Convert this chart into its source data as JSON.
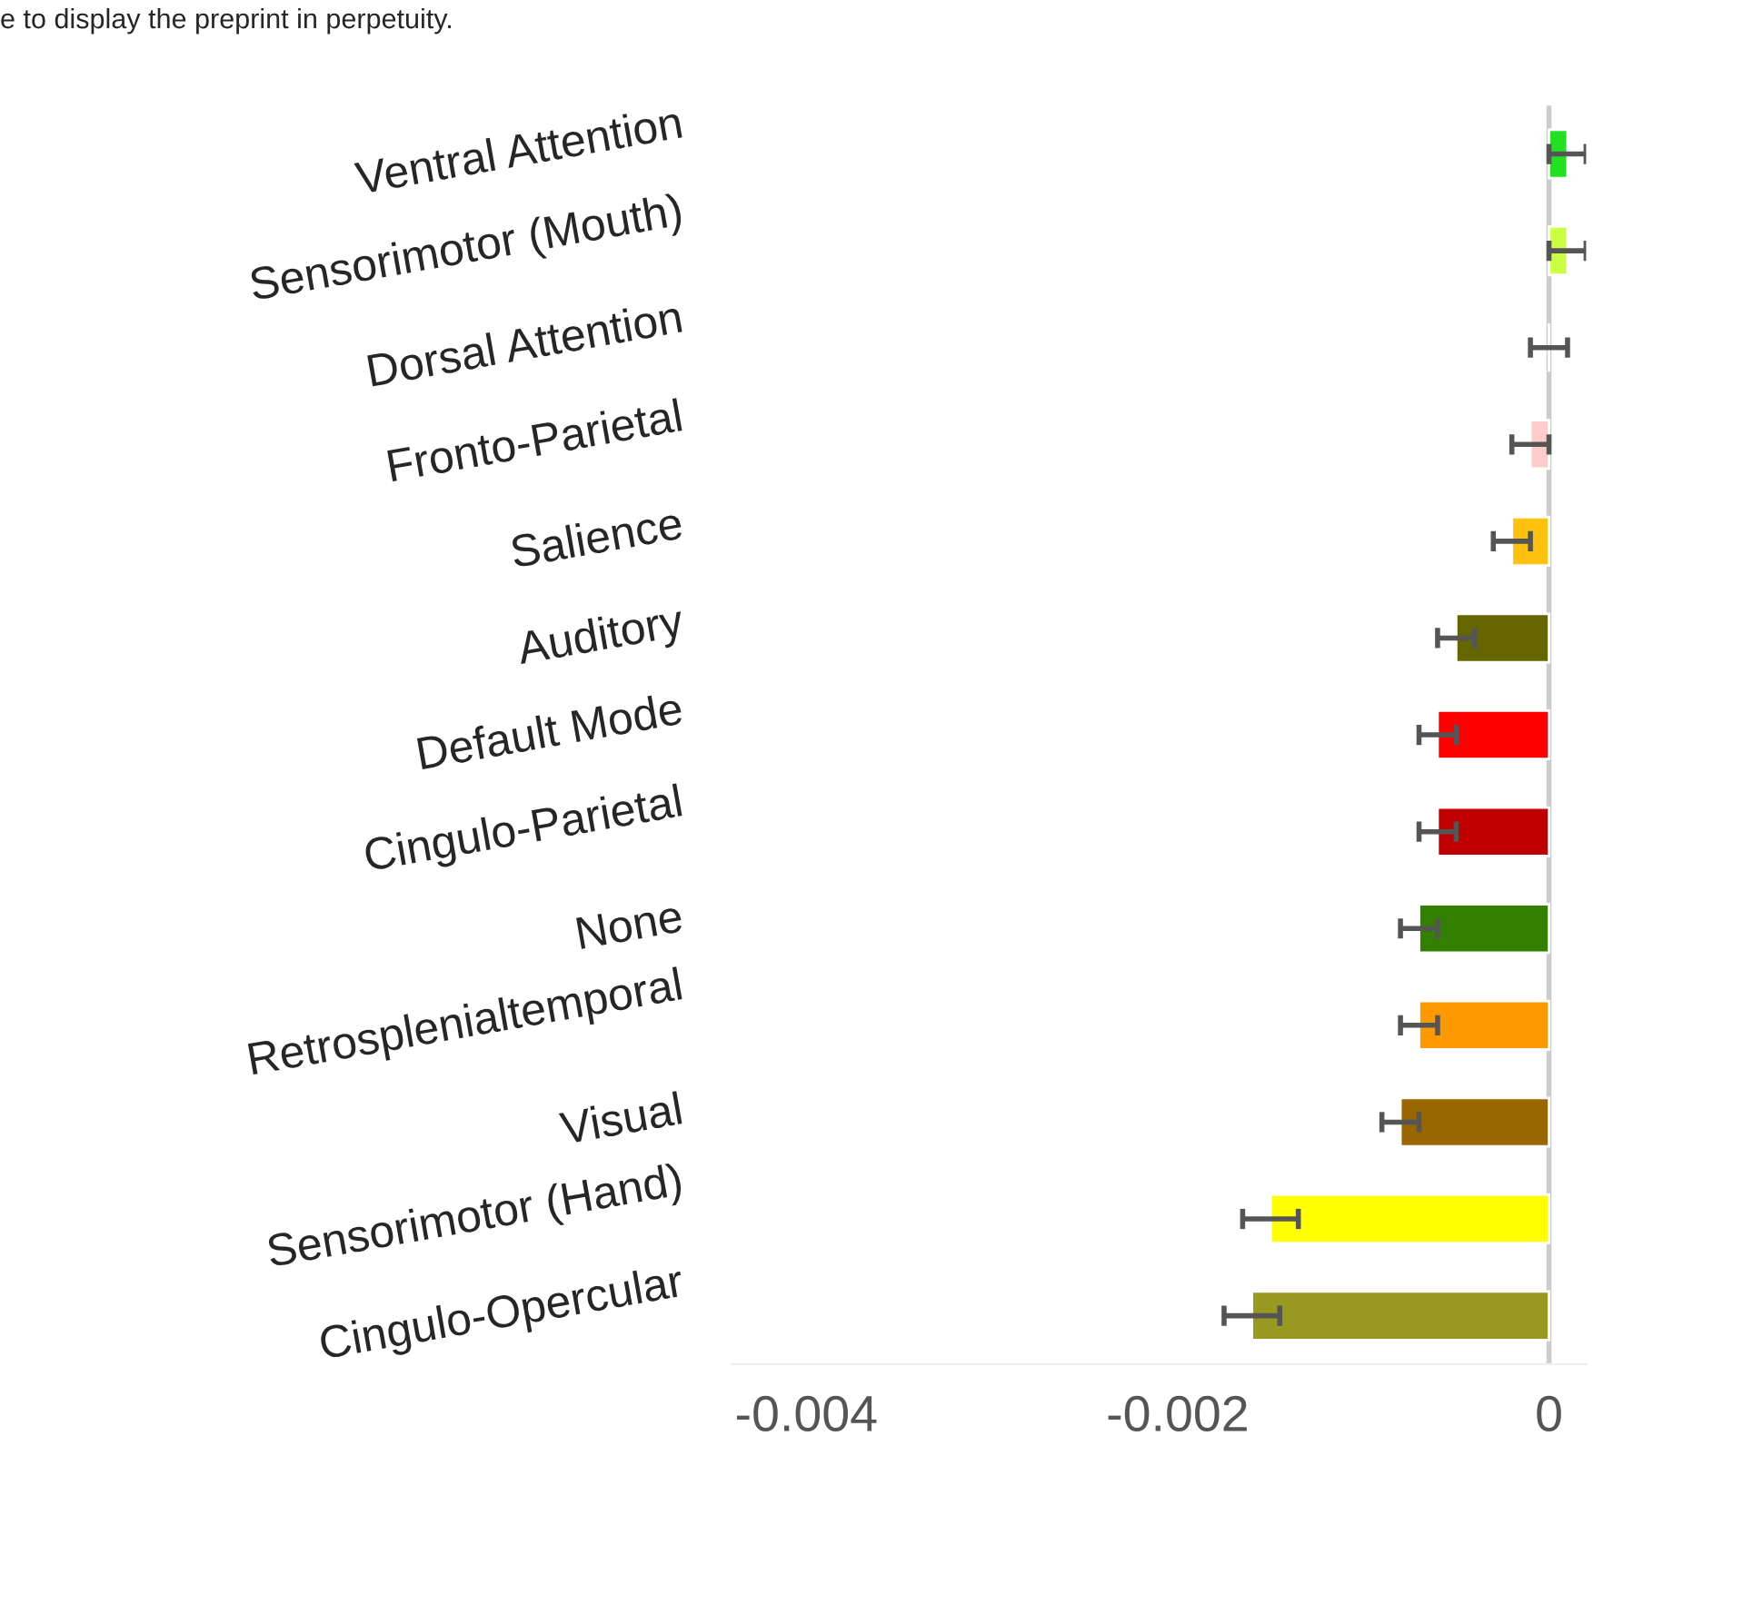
{
  "chart_data": {
    "type": "bar",
    "orientation": "horizontal",
    "categories": [
      "Ventral Attention",
      "Sensorimotor (Mouth)",
      "Dorsal Attention",
      "Fronto-Parietal",
      "Salience",
      "Auditory",
      "Default Mode",
      "Cingulo-Parietal",
      "None",
      "Retrosplenialtemporal",
      "Visual",
      "Sensorimotor (Hand)",
      "Cingulo-Opercular"
    ],
    "values": [
      0.0001,
      0.0001,
      0.0,
      -0.0001,
      -0.0002,
      -0.0005,
      -0.0006,
      -0.0006,
      -0.0007,
      -0.0007,
      -0.0008,
      -0.0015,
      -0.0016
    ],
    "errors": [
      0.0001,
      0.0001,
      0.0001,
      0.0001,
      0.0001,
      0.0001,
      0.0001,
      0.0001,
      0.0001,
      0.0001,
      0.0001,
      0.00015,
      0.00015
    ],
    "colors": [
      "#22e022",
      "#ccff44",
      "#ffffff",
      "#ffcccc",
      "#ffc20e",
      "#666600",
      "#ff0000",
      "#c00000",
      "#338000",
      "#ff9900",
      "#996600",
      "#ffff00",
      "#999922"
    ],
    "xlim": [
      -0.0044,
      0.0002
    ],
    "xticks": [
      {
        "value": -0.004,
        "label": "-0.004"
      },
      {
        "value": -0.002,
        "label": "-0.002"
      },
      0
    ],
    "grid": false,
    "ref_lines": [
      {
        "axis": "x",
        "value": 0,
        "color": "#cccccc"
      }
    ],
    "annotations": [
      "e to display the preprint in perpetuity."
    ]
  }
}
